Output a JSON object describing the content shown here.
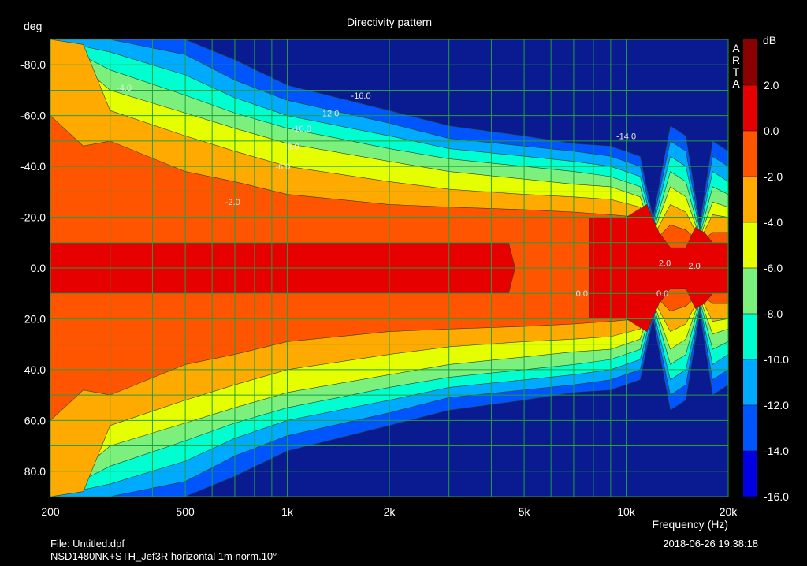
{
  "chart_data": {
    "type": "heatmap",
    "title": "Directivity pattern",
    "xlabel": "Frequency (Hz)",
    "ylabel": "deg",
    "xscale": "log",
    "xlim": [
      200,
      20000
    ],
    "ylim": [
      -90,
      90
    ],
    "x_ticks": [
      {
        "value": 200,
        "label": "200"
      },
      {
        "value": 500,
        "label": "500"
      },
      {
        "value": 1000,
        "label": "1k"
      },
      {
        "value": 2000,
        "label": "2k"
      },
      {
        "value": 5000,
        "label": "5k"
      },
      {
        "value": 10000,
        "label": "10k"
      },
      {
        "value": 20000,
        "label": "20k"
      }
    ],
    "y_ticks": [
      {
        "value": -80,
        "label": "-80.0"
      },
      {
        "value": -60,
        "label": "-60.0"
      },
      {
        "value": -40,
        "label": "-40.0"
      },
      {
        "value": -20,
        "label": "-20.0"
      },
      {
        "value": 0,
        "label": "0.0"
      },
      {
        "value": 20,
        "label": "20.0"
      },
      {
        "value": 40,
        "label": "40.0"
      },
      {
        "value": 60,
        "label": "60.0"
      },
      {
        "value": 80,
        "label": "80.0"
      }
    ],
    "grid": true,
    "colorbar": {
      "unit": "dB",
      "range": [
        -16,
        4
      ],
      "levels": [
        {
          "from": 2,
          "to": 4,
          "color": "#8b0000"
        },
        {
          "from": 0,
          "to": 2,
          "color": "#e60000"
        },
        {
          "from": -2,
          "to": 0,
          "color": "#ff5500"
        },
        {
          "from": -4,
          "to": -2,
          "color": "#ffaa00"
        },
        {
          "from": -6,
          "to": -4,
          "color": "#e6ff00"
        },
        {
          "from": -8,
          "to": -6,
          "color": "#7cf07c"
        },
        {
          "from": -10,
          "to": -8,
          "color": "#00ffd0"
        },
        {
          "from": -12,
          "to": -10,
          "color": "#00aaff"
        },
        {
          "from": -14,
          "to": -12,
          "color": "#0055ff"
        },
        {
          "from": -16,
          "to": -14,
          "color": "#0000e0"
        }
      ],
      "below_color": "#0a1a90",
      "tick_labels": [
        "2.0",
        "0.0",
        "-2.0",
        "-4.0",
        "-6.0",
        "-8.0",
        "-10.0",
        "-12.0",
        "-14.0",
        "-16.0"
      ],
      "tick_values": [
        2,
        0,
        -2,
        -4,
        -6,
        -8,
        -10,
        -12,
        -14,
        -16
      ]
    },
    "contour_boundaries": [
      {
        "level": -14,
        "angles": [
          [
            200,
            90
          ],
          [
            300,
            90
          ],
          [
            500,
            90
          ],
          [
            700,
            82
          ],
          [
            1000,
            72
          ],
          [
            2000,
            62
          ],
          [
            3000,
            56
          ],
          [
            5000,
            52
          ],
          [
            7000,
            49
          ],
          [
            9000,
            48
          ],
          [
            11000,
            44
          ],
          [
            12000,
            20
          ],
          [
            13500,
            56
          ],
          [
            15000,
            52
          ],
          [
            16500,
            18
          ],
          [
            18000,
            50
          ],
          [
            20000,
            46
          ]
        ]
      },
      {
        "level": -12,
        "angles": [
          [
            200,
            90
          ],
          [
            300,
            90
          ],
          [
            500,
            84
          ],
          [
            700,
            74
          ],
          [
            1000,
            66
          ],
          [
            2000,
            57
          ],
          [
            3000,
            51
          ],
          [
            5000,
            48
          ],
          [
            7000,
            46
          ],
          [
            9000,
            44
          ],
          [
            11000,
            40
          ],
          [
            12000,
            18
          ],
          [
            13500,
            50
          ],
          [
            15000,
            46
          ],
          [
            16500,
            16
          ],
          [
            18000,
            44
          ],
          [
            20000,
            40
          ]
        ]
      },
      {
        "level": -10,
        "angles": [
          [
            200,
            90
          ],
          [
            300,
            85
          ],
          [
            500,
            76
          ],
          [
            700,
            67
          ],
          [
            1000,
            60
          ],
          [
            2000,
            52
          ],
          [
            3000,
            47
          ],
          [
            5000,
            44
          ],
          [
            7000,
            42
          ],
          [
            9000,
            40
          ],
          [
            11000,
            36
          ],
          [
            12000,
            16
          ],
          [
            13500,
            44
          ],
          [
            15000,
            40
          ],
          [
            16500,
            15
          ],
          [
            18000,
            38
          ],
          [
            20000,
            34
          ]
        ]
      },
      {
        "level": -8,
        "angles": [
          [
            200,
            90
          ],
          [
            300,
            78
          ],
          [
            500,
            68
          ],
          [
            700,
            61
          ],
          [
            1000,
            55
          ],
          [
            2000,
            47
          ],
          [
            3000,
            43
          ],
          [
            5000,
            40
          ],
          [
            7000,
            38
          ],
          [
            9000,
            36
          ],
          [
            11000,
            32
          ],
          [
            12000,
            14
          ],
          [
            13500,
            38
          ],
          [
            15000,
            34
          ],
          [
            16500,
            13
          ],
          [
            18000,
            32
          ],
          [
            20000,
            29
          ]
        ]
      },
      {
        "level": -6,
        "angles": [
          [
            200,
            90
          ],
          [
            300,
            70
          ],
          [
            500,
            61
          ],
          [
            700,
            55
          ],
          [
            1000,
            49
          ],
          [
            2000,
            42
          ],
          [
            3000,
            38
          ],
          [
            5000,
            35
          ],
          [
            7000,
            33
          ],
          [
            9000,
            32
          ],
          [
            11000,
            28
          ],
          [
            12000,
            13
          ],
          [
            13500,
            32
          ],
          [
            15000,
            28
          ],
          [
            16500,
            12
          ],
          [
            18000,
            26
          ],
          [
            20000,
            24
          ]
        ]
      },
      {
        "level": -4,
        "angles": [
          [
            200,
            90
          ],
          [
            250,
            88
          ],
          [
            300,
            62
          ],
          [
            500,
            52
          ],
          [
            700,
            46
          ],
          [
            1000,
            40
          ],
          [
            2000,
            34
          ],
          [
            3000,
            31
          ],
          [
            5000,
            29
          ],
          [
            7000,
            28
          ],
          [
            9000,
            27
          ],
          [
            11000,
            24
          ],
          [
            12000,
            12
          ],
          [
            13500,
            25
          ],
          [
            15000,
            22
          ],
          [
            16500,
            11
          ],
          [
            18000,
            21
          ],
          [
            20000,
            20
          ]
        ]
      },
      {
        "level": -2,
        "angles": [
          [
            200,
            60
          ],
          [
            250,
            48
          ],
          [
            300,
            50
          ],
          [
            500,
            38
          ],
          [
            700,
            34
          ],
          [
            1000,
            29
          ],
          [
            2000,
            25
          ],
          [
            3000,
            24
          ],
          [
            5000,
            23
          ],
          [
            7000,
            22
          ],
          [
            9000,
            21
          ],
          [
            11000,
            20
          ],
          [
            12000,
            10
          ],
          [
            13500,
            17
          ],
          [
            15000,
            15
          ],
          [
            16500,
            10
          ],
          [
            18000,
            14
          ],
          [
            20000,
            14
          ]
        ]
      }
    ],
    "zero_db_band": [
      [
        200,
        10
      ],
      [
        4500,
        10
      ],
      [
        4700,
        0
      ]
    ],
    "red_region": [
      [
        7800,
        20
      ],
      [
        10000,
        20
      ],
      [
        11500,
        25
      ],
      [
        12500,
        14
      ],
      [
        13500,
        8
      ],
      [
        15000,
        8
      ],
      [
        16000,
        16
      ],
      [
        17000,
        14
      ],
      [
        18000,
        10
      ],
      [
        20000,
        10
      ]
    ],
    "annotations": [
      {
        "text": "-16.0",
        "x": 1650,
        "y": -68
      },
      {
        "text": "-14.0",
        "x": 10000,
        "y": -52
      },
      {
        "text": "-12.0",
        "x": 1330,
        "y": -61
      },
      {
        "text": "-10.0",
        "x": 1100,
        "y": -55
      },
      {
        "text": "-8.0",
        "x": 1030,
        "y": -48
      },
      {
        "text": "-6.0",
        "x": 970,
        "y": -40
      },
      {
        "text": "-4.0",
        "x": 330,
        "y": -71
      },
      {
        "text": "-2.0",
        "x": 690,
        "y": -26
      },
      {
        "text": "0.0",
        "x": 7400,
        "y": 10
      },
      {
        "text": "0.0",
        "x": 12800,
        "y": 10
      },
      {
        "text": "2.0",
        "x": 13000,
        "y": -2
      },
      {
        "text": "2.0",
        "x": 15900,
        "y": -1
      }
    ],
    "watermark": [
      "A",
      "R",
      "T",
      "A"
    ]
  },
  "footer": {
    "file": "File: Untitled.dpf",
    "description": "NSD1480NK+STH_Jef3R horizontal 1m norm.10°",
    "timestamp": "2018-06-26  19:38:18"
  },
  "colors": {
    "background": "#000000",
    "grid": "#20a040",
    "text": "#ffffff",
    "annotation_text": "#e8e8e8"
  }
}
